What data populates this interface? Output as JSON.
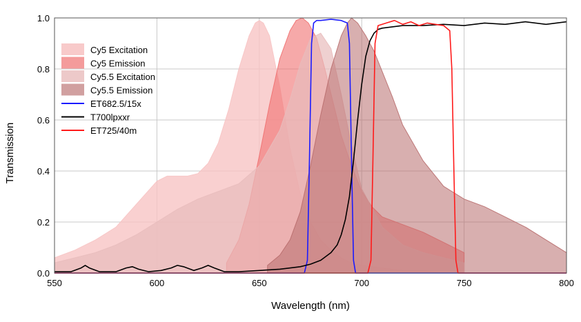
{
  "chart_data": {
    "type": "area",
    "title": "",
    "xlabel": "Wavelength (nm)",
    "ylabel": "Transmission",
    "xlim": [
      550,
      800
    ],
    "ylim": [
      0,
      1.0
    ],
    "x_ticks": [
      "550",
      "600",
      "650",
      "700",
      "750",
      "800"
    ],
    "y_ticks": [
      "0.0",
      "0.2",
      "0.4",
      "0.6",
      "0.8",
      "1.0"
    ],
    "grid": true,
    "legend_position": "top-left",
    "series": [
      {
        "name": "Cy5 Excitation",
        "kind": "area",
        "color": "#f7c4c4",
        "opacity": 0.8,
        "x": [
          550,
          560,
          570,
          580,
          590,
          600,
          605,
          610,
          615,
          620,
          625,
          630,
          635,
          640,
          645,
          648,
          650,
          652,
          655,
          660,
          665,
          670,
          675,
          680,
          685,
          690,
          695,
          700,
          710,
          720,
          730,
          740,
          750
        ],
        "y": [
          0.06,
          0.09,
          0.13,
          0.18,
          0.27,
          0.36,
          0.38,
          0.38,
          0.38,
          0.39,
          0.43,
          0.51,
          0.64,
          0.8,
          0.93,
          0.98,
          0.99,
          0.98,
          0.93,
          0.73,
          0.49,
          0.31,
          0.2,
          0.13,
          0.09,
          0.06,
          0.04,
          0.03,
          0.02,
          0.01,
          0.01,
          0.0,
          0.0
        ]
      },
      {
        "name": "Cy5 Emission",
        "kind": "area",
        "color": "#f07070",
        "opacity": 0.6,
        "x": [
          634,
          640,
          645,
          650,
          655,
          660,
          665,
          668,
          671,
          674,
          678,
          682,
          686,
          690,
          695,
          700,
          705,
          710,
          720,
          730,
          740,
          750
        ],
        "y": [
          0.04,
          0.13,
          0.27,
          0.46,
          0.66,
          0.84,
          0.95,
          0.99,
          1.0,
          0.98,
          0.92,
          0.8,
          0.67,
          0.54,
          0.42,
          0.32,
          0.26,
          0.22,
          0.19,
          0.16,
          0.12,
          0.08
        ]
      },
      {
        "name": "Cy5.5 Excitation",
        "kind": "area",
        "color": "#e8bcbc",
        "opacity": 0.7,
        "x": [
          550,
          560,
          570,
          580,
          590,
          600,
          610,
          620,
          630,
          640,
          650,
          660,
          665,
          670,
          675,
          680,
          685,
          690,
          695,
          700,
          710,
          720,
          730,
          740,
          750
        ],
        "y": [
          0.04,
          0.06,
          0.08,
          0.11,
          0.15,
          0.2,
          0.25,
          0.29,
          0.32,
          0.35,
          0.42,
          0.56,
          0.68,
          0.82,
          0.92,
          0.94,
          0.88,
          0.7,
          0.5,
          0.33,
          0.18,
          0.11,
          0.08,
          0.06,
          0.04
        ]
      },
      {
        "name": "Cy5.5 Emission",
        "kind": "area",
        "color": "#b86d6d",
        "opacity": 0.55,
        "x": [
          654,
          660,
          665,
          670,
          675,
          680,
          685,
          690,
          693,
          695,
          698,
          702,
          706,
          710,
          715,
          720,
          730,
          740,
          750,
          760,
          770,
          780,
          790,
          800
        ],
        "y": [
          0.03,
          0.07,
          0.13,
          0.24,
          0.42,
          0.62,
          0.8,
          0.93,
          0.98,
          1.0,
          0.98,
          0.93,
          0.87,
          0.79,
          0.69,
          0.58,
          0.44,
          0.34,
          0.29,
          0.26,
          0.22,
          0.18,
          0.13,
          0.08
        ]
      },
      {
        "name": "ET682.5/15x",
        "kind": "line",
        "color": "#1a1aff",
        "x": [
          550,
          672,
          673.5,
          674.5,
          675.5,
          676.5,
          678,
          680,
          685,
          690,
          693,
          694,
          695,
          696,
          697,
          800
        ],
        "y": [
          0.0,
          0.0,
          0.05,
          0.45,
          0.9,
          0.98,
          0.99,
          0.99,
          0.995,
          0.99,
          0.98,
          0.9,
          0.45,
          0.05,
          0.0,
          0.0
        ]
      },
      {
        "name": "T700lpxxr",
        "kind": "line",
        "color": "#000000",
        "x": [
          550,
          558,
          563,
          565,
          567,
          572,
          580,
          585,
          588,
          591,
          596,
          602,
          607,
          610,
          613,
          618,
          622,
          625,
          628,
          633,
          640,
          650,
          660,
          670,
          675,
          680,
          685,
          688,
          690,
          692,
          694,
          696,
          698,
          700,
          702,
          704,
          706,
          708,
          710,
          715,
          720,
          730,
          740,
          750,
          760,
          770,
          780,
          790,
          800
        ],
        "y": [
          0.005,
          0.005,
          0.02,
          0.03,
          0.02,
          0.005,
          0.005,
          0.02,
          0.025,
          0.015,
          0.005,
          0.01,
          0.02,
          0.03,
          0.025,
          0.01,
          0.02,
          0.03,
          0.02,
          0.005,
          0.005,
          0.01,
          0.015,
          0.025,
          0.035,
          0.05,
          0.08,
          0.11,
          0.15,
          0.21,
          0.3,
          0.44,
          0.6,
          0.74,
          0.85,
          0.91,
          0.94,
          0.955,
          0.96,
          0.965,
          0.97,
          0.97,
          0.975,
          0.97,
          0.98,
          0.975,
          0.985,
          0.975,
          0.985
        ]
      },
      {
        "name": "ET725/40m",
        "kind": "line",
        "color": "#ff1a1a",
        "x": [
          550,
          703,
          704.5,
          705.5,
          706.5,
          708,
          712,
          716,
          720,
          724,
          728,
          732,
          736,
          740,
          743,
          744,
          745,
          746,
          747,
          800
        ],
        "y": [
          0.0,
          0.0,
          0.05,
          0.45,
          0.9,
          0.97,
          0.98,
          0.99,
          0.975,
          0.985,
          0.97,
          0.98,
          0.975,
          0.97,
          0.95,
          0.8,
          0.4,
          0.05,
          0.0,
          0.0
        ]
      }
    ]
  }
}
